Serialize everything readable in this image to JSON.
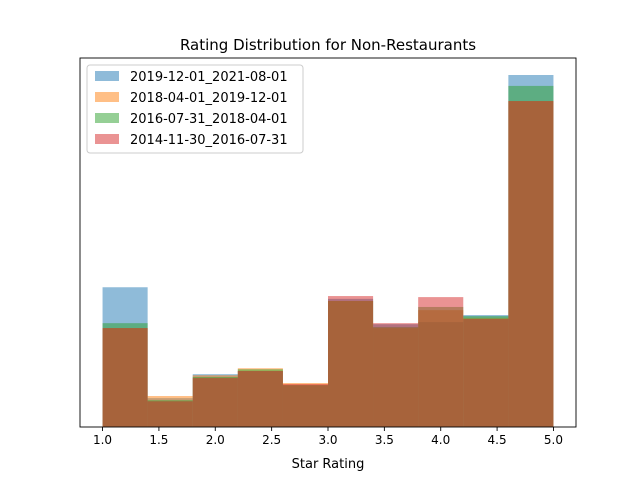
{
  "chart_data": {
    "type": "bar",
    "title": "Rating Distribution for Non-Restaurants",
    "xlabel": "Star Rating",
    "ylabel": "",
    "xlim": [
      0.8,
      5.2
    ],
    "ylim": [
      0,
      1
    ],
    "y_ticks_visible": false,
    "grid": false,
    "legend_position": "top-left",
    "bin_edges": [
      1.0,
      1.4,
      1.8,
      2.2,
      2.6,
      3.0,
      3.4,
      3.8,
      4.2,
      4.6,
      5.0
    ],
    "x_ticks": [
      "1.0",
      "1.5",
      "2.0",
      "2.5",
      "3.0",
      "3.5",
      "4.0",
      "4.5",
      "5.0"
    ],
    "series": [
      {
        "name": "2019-12-01_2021-08-01",
        "color": "#1f77b4",
        "values": [
          0.397,
          0.082,
          0.15,
          0.159,
          0.119,
          0.364,
          0.292,
          0.298,
          0.318,
          1.0
        ]
      },
      {
        "name": "2018-04-01_2019-12-01",
        "color": "#ff7f0e",
        "values": [
          0.281,
          0.088,
          0.147,
          0.167,
          0.125,
          0.358,
          0.281,
          0.332,
          0.31,
          0.926
        ]
      },
      {
        "name": "2016-07-31_2018-04-01",
        "color": "#2ca02c",
        "values": [
          0.295,
          0.076,
          0.142,
          0.164,
          0.119,
          0.358,
          0.284,
          0.341,
          0.315,
          0.969
        ]
      },
      {
        "name": "2014-11-30_2016-07-31",
        "color": "#d62728",
        "values": [
          0.281,
          0.073,
          0.139,
          0.159,
          0.122,
          0.372,
          0.295,
          0.369,
          0.307,
          0.926
        ]
      }
    ]
  }
}
